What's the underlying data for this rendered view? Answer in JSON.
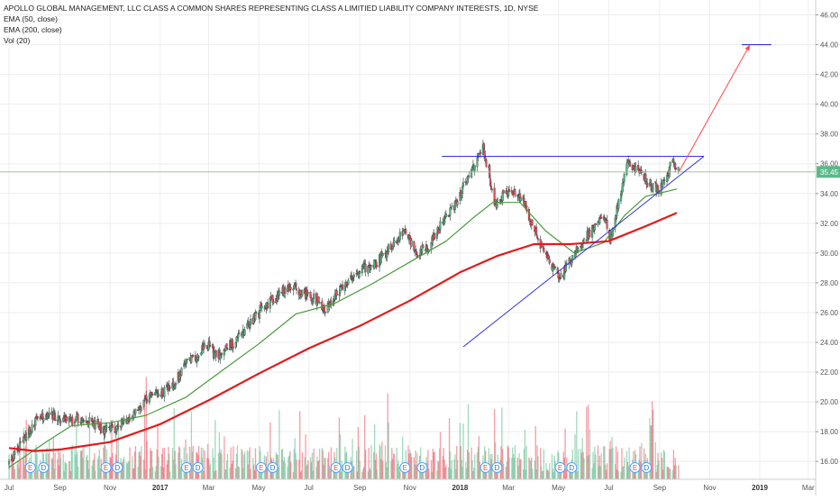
{
  "title": "APOLLO GLOBAL MANAGEMENT, LLC CLASS A COMMON SHARES REPRESENTING CLASS A LIMITIED LIABILITY COMPANY INTERESTS, 1D, NYSE",
  "indicators": [
    "EMA (50, close)",
    "EMA (200, close)",
    "Vol (20)"
  ],
  "current_price_label": "35.45",
  "colors": {
    "up": "#53b987",
    "down": "#eb4d5c",
    "ema50": "#4a9a3a",
    "ema200": "#e31a1c",
    "trendline": "#3333dd",
    "projection": "#ff4444",
    "price_line": "#8fbc8f",
    "grid": "#eeeeee",
    "axis_text": "#555555",
    "earnings_badge_border": "#4da6ff"
  },
  "chart_data": {
    "type": "candlestick",
    "title": "APOLLO GLOBAL MANAGEMENT, LLC CLASS A COMMON SHARES REPRESENTING CLASS A LIMITIED LIABILITY COMPANY INTERESTS, 1D, NYSE",
    "y_ticks": [
      "16.00",
      "18.00",
      "20.00",
      "22.00",
      "24.00",
      "26.00",
      "28.00",
      "30.00",
      "32.00",
      "34.00",
      "36.00",
      "38.00",
      "40.00",
      "42.00",
      "44.00",
      "46.00"
    ],
    "ylim": [
      14.8,
      47.0
    ],
    "x_ticks": [
      {
        "label": "Jul",
        "date": "2016-07-01"
      },
      {
        "label": "Sep",
        "date": "2016-09-01"
      },
      {
        "label": "Nov",
        "date": "2016-11-01"
      },
      {
        "label": "2017",
        "date": "2017-01-01"
      },
      {
        "label": "Mar",
        "date": "2017-03-01"
      },
      {
        "label": "May",
        "date": "2017-05-01"
      },
      {
        "label": "Jul",
        "date": "2017-07-01"
      },
      {
        "label": "Sep",
        "date": "2017-09-01"
      },
      {
        "label": "Nov",
        "date": "2017-11-01"
      },
      {
        "label": "2018",
        "date": "2018-01-01"
      },
      {
        "label": "Mar",
        "date": "2018-03-01"
      },
      {
        "label": "May",
        "date": "2018-05-01"
      },
      {
        "label": "Jul",
        "date": "2018-07-01"
      },
      {
        "label": "Sep",
        "date": "2018-09-01"
      },
      {
        "label": "Nov",
        "date": "2018-11-01"
      },
      {
        "label": "2019",
        "date": "2019-01-01"
      },
      {
        "label": "Mar",
        "date": "2019-03-01"
      }
    ],
    "price_path": [
      [
        "2016-07-01",
        15.8
      ],
      [
        "2016-07-20",
        17.6
      ],
      [
        "2016-08-05",
        18.9
      ],
      [
        "2016-08-20",
        19.1
      ],
      [
        "2016-09-10",
        18.7
      ],
      [
        "2016-10-01",
        18.9
      ],
      [
        "2016-10-25",
        18.0
      ],
      [
        "2016-11-10",
        18.3
      ],
      [
        "2016-12-01",
        19.3
      ],
      [
        "2016-12-20",
        20.3
      ],
      [
        "2017-01-15",
        21.0
      ],
      [
        "2017-02-01",
        22.5
      ],
      [
        "2017-02-20",
        23.4
      ],
      [
        "2017-03-01",
        23.8
      ],
      [
        "2017-03-10",
        23.0
      ],
      [
        "2017-04-10",
        24.5
      ],
      [
        "2017-05-05",
        26.3
      ],
      [
        "2017-05-25",
        27.2
      ],
      [
        "2017-06-10",
        27.8
      ],
      [
        "2017-06-25",
        27.3
      ],
      [
        "2017-07-10",
        26.8
      ],
      [
        "2017-07-20",
        26.2
      ],
      [
        "2017-08-10",
        27.8
      ],
      [
        "2017-09-01",
        28.8
      ],
      [
        "2017-09-20",
        29.3
      ],
      [
        "2017-10-10",
        30.5
      ],
      [
        "2017-10-25",
        31.5
      ],
      [
        "2017-11-10",
        30.0
      ],
      [
        "2017-11-25",
        30.6
      ],
      [
        "2017-12-10",
        32.0
      ],
      [
        "2017-12-25",
        33.2
      ],
      [
        "2018-01-10",
        35.0
      ],
      [
        "2018-01-22",
        36.2
      ],
      [
        "2018-01-29",
        37.0
      ],
      [
        "2018-02-05",
        35.5
      ],
      [
        "2018-02-12",
        33.2
      ],
      [
        "2018-03-01",
        34.2
      ],
      [
        "2018-03-20",
        33.5
      ],
      [
        "2018-04-01",
        31.5
      ],
      [
        "2018-04-20",
        29.5
      ],
      [
        "2018-05-03",
        28.3
      ],
      [
        "2018-05-20",
        30.0
      ],
      [
        "2018-06-10",
        31.5
      ],
      [
        "2018-06-25",
        32.5
      ],
      [
        "2018-07-03",
        30.8
      ],
      [
        "2018-07-15",
        34.0
      ],
      [
        "2018-07-25",
        36.1
      ],
      [
        "2018-08-05",
        35.6
      ],
      [
        "2018-08-20",
        34.6
      ],
      [
        "2018-09-01",
        34.3
      ],
      [
        "2018-09-10",
        35.0
      ],
      [
        "2018-09-15",
        36.2
      ],
      [
        "2018-09-22",
        35.45
      ]
    ],
    "ema50": [
      [
        "2016-07-01",
        15.6
      ],
      [
        "2016-08-15",
        17.3
      ],
      [
        "2016-09-15",
        18.4
      ],
      [
        "2016-11-01",
        18.6
      ],
      [
        "2016-12-15",
        19.1
      ],
      [
        "2017-02-01",
        20.3
      ],
      [
        "2017-03-15",
        22.0
      ],
      [
        "2017-05-01",
        23.9
      ],
      [
        "2017-06-15",
        25.9
      ],
      [
        "2017-08-01",
        26.6
      ],
      [
        "2017-09-15",
        27.9
      ],
      [
        "2017-11-01",
        29.4
      ],
      [
        "2017-12-15",
        30.8
      ],
      [
        "2018-01-20",
        32.5
      ],
      [
        "2018-02-10",
        33.4
      ],
      [
        "2018-03-15",
        33.4
      ],
      [
        "2018-04-15",
        31.5
      ],
      [
        "2018-05-20",
        30.0
      ],
      [
        "2018-06-25",
        30.7
      ],
      [
        "2018-07-20",
        32.5
      ],
      [
        "2018-08-15",
        33.8
      ],
      [
        "2018-09-22",
        34.3
      ]
    ],
    "ema200": [
      [
        "2016-07-01",
        16.9
      ],
      [
        "2016-08-01",
        16.7
      ],
      [
        "2016-09-01",
        16.8
      ],
      [
        "2016-11-01",
        17.3
      ],
      [
        "2017-01-01",
        18.5
      ],
      [
        "2017-03-01",
        20.1
      ],
      [
        "2017-05-01",
        21.9
      ],
      [
        "2017-07-01",
        23.6
      ],
      [
        "2017-09-01",
        25.1
      ],
      [
        "2017-11-01",
        26.8
      ],
      [
        "2018-01-01",
        28.7
      ],
      [
        "2018-02-15",
        29.8
      ],
      [
        "2018-04-01",
        30.6
      ],
      [
        "2018-05-15",
        30.6
      ],
      [
        "2018-07-01",
        30.8
      ],
      [
        "2018-08-15",
        31.8
      ],
      [
        "2018-09-22",
        32.7
      ]
    ],
    "resistance_line": {
      "from": [
        "2017-12-10",
        36.5
      ],
      "to": [
        "2018-10-25",
        36.5
      ]
    },
    "support_line": {
      "from": [
        "2018-01-05",
        23.7
      ],
      "to": [
        "2018-10-25",
        36.5
      ]
    },
    "projection_arrow": {
      "from": [
        "2018-09-25",
        35.5
      ],
      "to": [
        "2018-12-20",
        44.0
      ]
    },
    "target_line": {
      "from": [
        "2018-12-10",
        44.0
      ],
      "to": [
        "2019-01-15",
        44.0
      ]
    },
    "current_price": 35.45,
    "earnings_markers": [
      "2016-07-27",
      "2016-10-27",
      "2017-02-02",
      "2017-05-04",
      "2017-08-03",
      "2017-10-26",
      "2018-02-01",
      "2018-05-03",
      "2018-08-02"
    ],
    "earnings_label": "E",
    "dividend_label": "D",
    "dividend_markers": [
      "2016-08-12",
      "2016-11-10",
      "2017-02-16",
      "2017-05-18",
      "2017-08-17",
      "2017-11-16",
      "2018-02-15",
      "2018-05-17",
      "2018-08-16"
    ]
  }
}
